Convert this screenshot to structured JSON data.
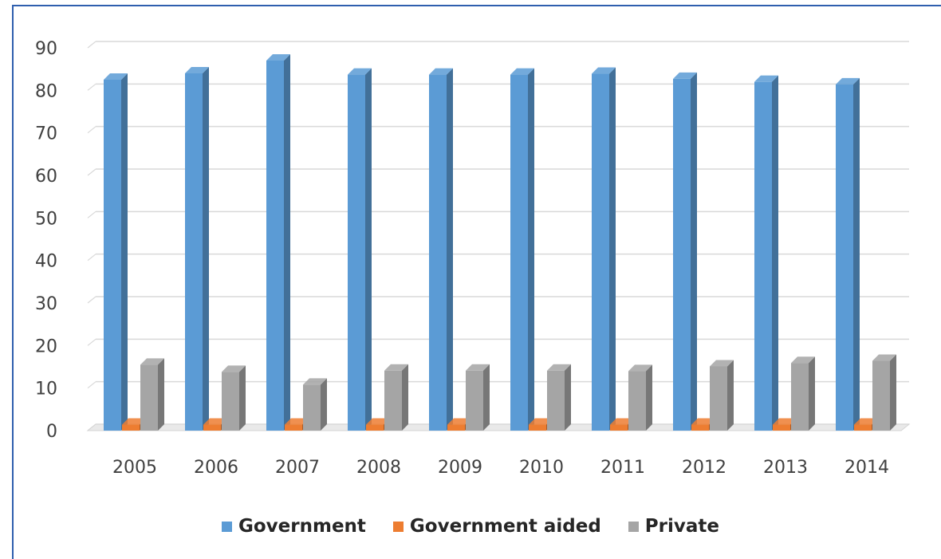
{
  "chart_data": {
    "type": "bar",
    "categories": [
      "2005",
      "2006",
      "2007",
      "2008",
      "2009",
      "2010",
      "2011",
      "2012",
      "2013",
      "2014"
    ],
    "series": [
      {
        "name": "Government",
        "values": [
          82.5,
          84.0,
          87.0,
          83.7,
          83.7,
          83.7,
          83.9,
          82.7,
          82.0,
          81.4
        ],
        "color": "#5b9bd5"
      },
      {
        "name": "Government aided",
        "values": [
          1.4,
          1.4,
          1.4,
          1.4,
          1.4,
          1.4,
          1.4,
          1.4,
          1.4,
          1.4
        ],
        "color": "#ed7d31"
      },
      {
        "name": "Private",
        "values": [
          15.5,
          13.8,
          10.8,
          14.1,
          14.1,
          14.1,
          14.0,
          15.1,
          15.9,
          16.4
        ],
        "color": "#a5a5a5"
      }
    ],
    "yticks": [
      "0",
      "10",
      "20",
      "30",
      "40",
      "50",
      "60",
      "70",
      "80",
      "90"
    ],
    "ylim": [
      0,
      90
    ],
    "title": "",
    "xlabel": "",
    "ylabel": "",
    "grid": true,
    "legend_position": "bottom",
    "frame_color": "#2f5fae"
  }
}
